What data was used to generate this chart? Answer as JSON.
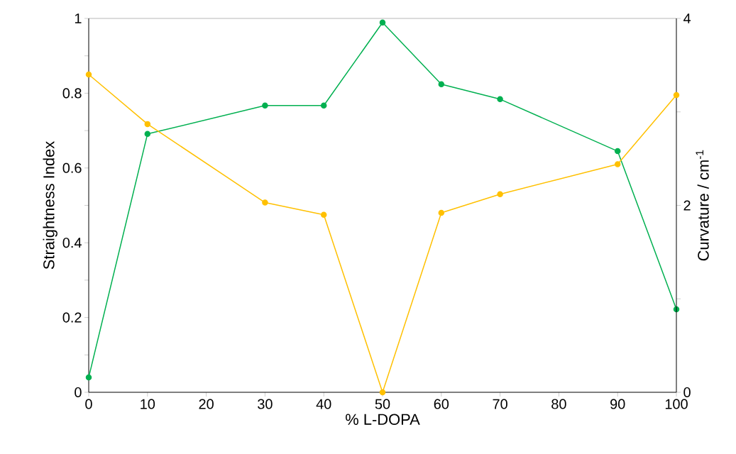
{
  "chart_data": {
    "type": "line",
    "xlabel": "% L-DOPA",
    "ylabel": "Straightness Index",
    "y2label": "Curvature / cm$^{-1}$",
    "x": [
      0,
      10,
      30,
      40,
      50,
      60,
      70,
      90,
      100
    ],
    "series": [
      {
        "color": "#00b050",
        "values": [
          0.04,
          0.691,
          0.767,
          0.767,
          0.989,
          0.824,
          0.784,
          0.645,
          0.222
        ]
      },
      {
        "color": "#ffc000",
        "axis": "y2",
        "values": [
          3.4,
          2.87,
          2.03,
          1.9,
          0,
          1.92,
          2.12,
          2.44,
          3.18
        ]
      }
    ],
    "xlim": [
      0,
      100
    ],
    "xticks": [
      0,
      10,
      20,
      30,
      40,
      50,
      60,
      70,
      80,
      90,
      100
    ],
    "ylim": [
      0,
      1
    ],
    "yticks": [
      0,
      {
        "value": 0.1,
        "label": null
      },
      0.2,
      {
        "value": 0.3,
        "label": null
      },
      0.4,
      {
        "value": 0.5,
        "label": null
      },
      0.6,
      {
        "value": 0.7,
        "label": null
      },
      0.8,
      {
        "value": 0.9,
        "label": null
      },
      1
    ],
    "y2lim": [
      0,
      4
    ],
    "y2ticks": [
      0,
      {
        "value": 1,
        "label": null
      },
      2,
      {
        "value": 3,
        "label": null
      },
      4
    ],
    "marker": "circle",
    "line_style": "solid"
  }
}
